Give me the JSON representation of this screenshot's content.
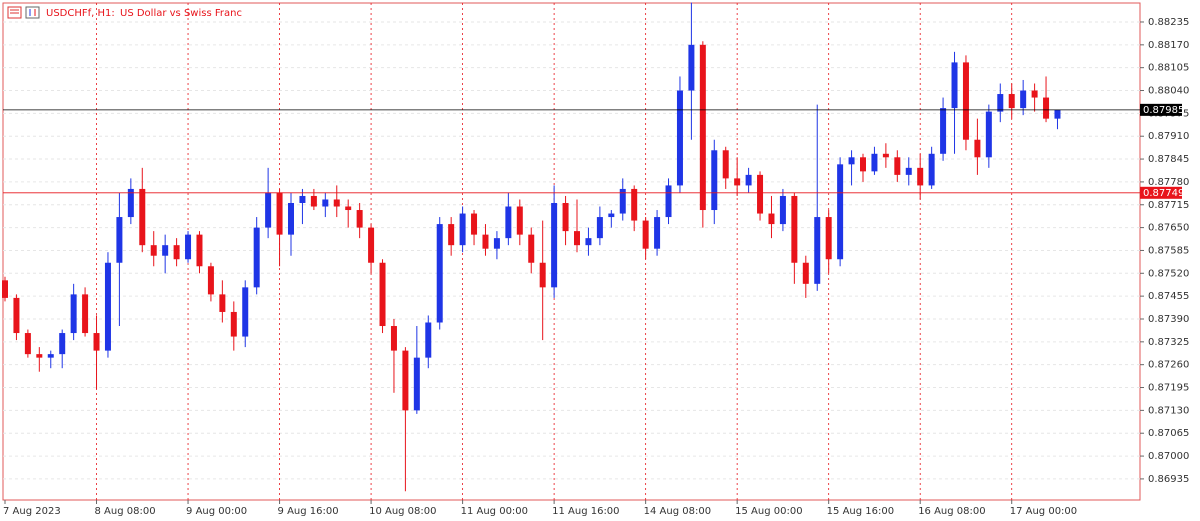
{
  "chart_data": {
    "type": "candlestick",
    "title": "USDCHFf, H1:",
    "subtitle": "US Dollar vs Swiss Franc",
    "up_color": "#1f35e6",
    "down_color": "#e8141b",
    "categories": [
      "7 Aug 2023",
      null,
      null,
      null,
      null,
      null,
      null,
      null,
      "8 Aug 08:00",
      null,
      null,
      null,
      null,
      null,
      null,
      null,
      "9 Aug 00:00",
      null,
      null,
      null,
      null,
      null,
      null,
      null,
      "9 Aug 16:00",
      null,
      null,
      null,
      null,
      null,
      null,
      null,
      "10 Aug 08:00",
      null,
      null,
      null,
      null,
      null,
      null,
      null,
      "11 Aug 00:00",
      null,
      null,
      null,
      null,
      null,
      null,
      null,
      "11 Aug 16:00",
      null,
      null,
      null,
      null,
      null,
      null,
      null,
      "14 Aug 08:00",
      null,
      null,
      null,
      null,
      null,
      null,
      null,
      "15 Aug 00:00",
      null,
      null,
      null,
      null,
      null,
      null,
      null,
      "15 Aug 16:00",
      null,
      null,
      null,
      null,
      null,
      null,
      null,
      "16 Aug 08:00",
      null,
      null,
      null,
      null,
      null,
      null,
      null,
      "17 Aug 00:00",
      null,
      null,
      null,
      null
    ],
    "open": [
      0.875,
      0.8745,
      0.8735,
      0.8729,
      0.8728,
      0.8729,
      0.8735,
      0.8746,
      0.8735,
      0.873,
      0.8755,
      0.8768,
      0.8776,
      0.876,
      0.8757,
      0.876,
      0.8756,
      0.8763,
      0.8754,
      0.8746,
      0.8741,
      0.8734,
      0.8748,
      0.8765,
      0.8775,
      0.8763,
      0.8772,
      0.8774,
      0.8771,
      0.8773,
      0.8771,
      0.877,
      0.8765,
      0.8755,
      0.8737,
      0.873,
      0.8713,
      0.8728,
      0.8738,
      0.8766,
      0.876,
      0.8769,
      0.8763,
      0.8759,
      0.8762,
      0.8771,
      0.8763,
      0.8755,
      0.8748,
      0.8772,
      0.8764,
      0.876,
      0.8762,
      0.8768,
      0.8769,
      0.8776,
      0.8767,
      0.8759,
      0.8768,
      0.8777,
      0.8804,
      0.8817,
      0.877,
      0.8787,
      0.8779,
      0.8777,
      0.878,
      0.8769,
      0.8766,
      0.8774,
      0.8755,
      0.8749,
      0.8768,
      0.8756,
      0.8783,
      0.8785,
      0.8781,
      0.8786,
      0.8785,
      0.878,
      0.8782,
      0.8777,
      0.8786,
      0.8799,
      0.8812,
      0.879,
      0.8785,
      0.8798,
      0.8803,
      0.8799,
      0.8804,
      0.8802,
      0.8796
    ],
    "high": [
      0.8751,
      0.8746,
      0.8736,
      0.8731,
      0.873,
      0.8736,
      0.8749,
      0.8748,
      0.874,
      0.8758,
      0.8775,
      0.8779,
      0.8782,
      0.8764,
      0.8763,
      0.8762,
      0.8764,
      0.8764,
      0.8755,
      0.875,
      0.8744,
      0.875,
      0.8768,
      0.8782,
      0.8776,
      0.8775,
      0.8776,
      0.8776,
      0.8775,
      0.8777,
      0.8773,
      0.8772,
      0.8766,
      0.8756,
      0.8739,
      0.8731,
      0.8737,
      0.874,
      0.8768,
      0.8768,
      0.8771,
      0.877,
      0.8766,
      0.8764,
      0.8775,
      0.8773,
      0.8765,
      0.8767,
      0.8777,
      0.8774,
      0.8773,
      0.8765,
      0.8771,
      0.877,
      0.8779,
      0.8777,
      0.8768,
      0.877,
      0.8779,
      0.8808,
      0.8829,
      0.8818,
      0.879,
      0.8788,
      0.8785,
      0.8782,
      0.8781,
      0.8774,
      0.8776,
      0.8775,
      0.8757,
      0.88,
      0.877,
      0.8785,
      0.8787,
      0.8786,
      0.8788,
      0.8789,
      0.8787,
      0.8785,
      0.8786,
      0.8788,
      0.8802,
      0.8815,
      0.8814,
      0.8796,
      0.88,
      0.8806,
      0.8806,
      0.8807,
      0.8806,
      0.8808,
      0.8798
    ],
    "low": [
      0.8744,
      0.8733,
      0.8728,
      0.8724,
      0.8725,
      0.8725,
      0.8733,
      0.8734,
      0.8719,
      0.8728,
      0.8737,
      0.8766,
      0.8758,
      0.8754,
      0.8752,
      0.8754,
      0.8755,
      0.8752,
      0.8744,
      0.8738,
      0.873,
      0.8731,
      0.8746,
      0.8762,
      0.8754,
      0.8757,
      0.8766,
      0.877,
      0.8768,
      0.8768,
      0.8765,
      0.8762,
      0.8752,
      0.8735,
      0.8718,
      0.869,
      0.8712,
      0.8725,
      0.8736,
      0.8757,
      0.8758,
      0.876,
      0.8757,
      0.8756,
      0.876,
      0.876,
      0.8752,
      0.8733,
      0.8745,
      0.876,
      0.8758,
      0.8757,
      0.876,
      0.8765,
      0.8767,
      0.8764,
      0.8756,
      0.8757,
      0.8766,
      0.8775,
      0.879,
      0.8765,
      0.8766,
      0.8776,
      0.8774,
      0.8775,
      0.8767,
      0.8762,
      0.8764,
      0.8749,
      0.8745,
      0.8747,
      0.8752,
      0.8754,
      0.8777,
      0.8778,
      0.878,
      0.8782,
      0.8778,
      0.8777,
      0.8773,
      0.8776,
      0.8784,
      0.8786,
      0.8787,
      0.878,
      0.8782,
      0.8795,
      0.8796,
      0.8797,
      0.8798,
      0.8795,
      0.8793
    ],
    "close": [
      0.8745,
      0.8735,
      0.8729,
      0.8728,
      0.8729,
      0.8735,
      0.8746,
      0.8735,
      0.873,
      0.8755,
      0.8768,
      0.8776,
      0.876,
      0.8757,
      0.876,
      0.8756,
      0.8763,
      0.8754,
      0.8746,
      0.8741,
      0.8734,
      0.8748,
      0.8765,
      0.8775,
      0.8763,
      0.8772,
      0.8774,
      0.8771,
      0.8773,
      0.8771,
      0.877,
      0.8765,
      0.8755,
      0.8737,
      0.873,
      0.8713,
      0.8728,
      0.8738,
      0.8766,
      0.876,
      0.8769,
      0.8763,
      0.8759,
      0.8762,
      0.8771,
      0.8763,
      0.8755,
      0.8748,
      0.8772,
      0.8764,
      0.876,
      0.8762,
      0.8768,
      0.8769,
      0.8776,
      0.8767,
      0.8759,
      0.8768,
      0.8777,
      0.8804,
      0.8817,
      0.877,
      0.8787,
      0.8779,
      0.8777,
      0.878,
      0.8769,
      0.8766,
      0.8774,
      0.8755,
      0.8749,
      0.8768,
      0.8756,
      0.8783,
      0.8785,
      0.8781,
      0.8786,
      0.8785,
      0.878,
      0.8782,
      0.8777,
      0.8786,
      0.8799,
      0.8812,
      0.879,
      0.8785,
      0.8798,
      0.8803,
      0.8799,
      0.8804,
      0.8802,
      0.8796,
      0.87985
    ],
    "ylim": [
      0.86875,
      0.88289
    ],
    "yticks": [
      0.86935,
      {
        "value": 0.87,
        "label": "0.87000"
      },
      0.87065,
      {
        "value": 0.8713,
        "label": "0.87130"
      },
      0.87195,
      {
        "value": 0.8726,
        "label": "0.87260"
      },
      0.87325,
      {
        "value": 0.8739,
        "label": "0.87390"
      },
      0.87455,
      {
        "value": 0.8752,
        "label": "0.87520"
      },
      0.87585,
      {
        "value": 0.8765,
        "label": "0.87650"
      },
      0.87715,
      {
        "value": 0.8778,
        "label": "0.87780"
      },
      0.87845,
      {
        "value": 0.8791,
        "label": "0.87910"
      },
      0.87975,
      {
        "value": 0.8804,
        "label": "0.88040"
      },
      0.88105,
      {
        "value": 0.8817,
        "label": "0.88170"
      },
      0.88235
    ],
    "grid": true,
    "price_lines": [
      {
        "value": 0.87985,
        "color": "#000000"
      },
      {
        "value": 0.87749,
        "color": "#e8141b"
      }
    ]
  }
}
